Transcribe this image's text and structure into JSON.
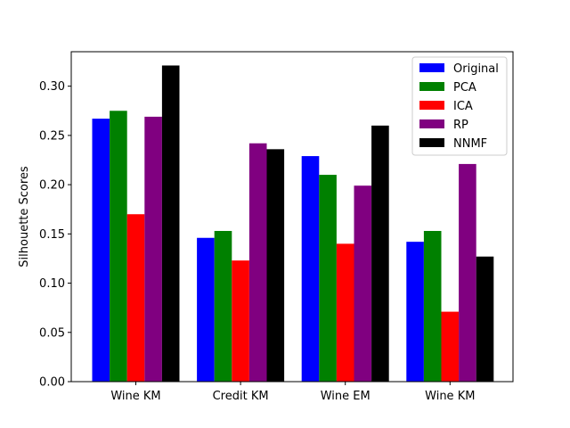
{
  "chart_data": {
    "type": "bar",
    "title": "",
    "xlabel": "",
    "ylabel": "Silhouette Scores",
    "ylim": [
      0,
      0.335
    ],
    "yticks": [
      "0.00",
      "0.05",
      "0.10",
      "0.15",
      "0.20",
      "0.25",
      "0.30"
    ],
    "categories": [
      "Wine KM",
      "Credit KM",
      "Wine EM",
      "Wine KM"
    ],
    "series": [
      {
        "name": "Original",
        "color": "#0000ff",
        "values": [
          0.267,
          0.146,
          0.229,
          0.142
        ]
      },
      {
        "name": "PCA",
        "color": "#008000",
        "values": [
          0.275,
          0.153,
          0.21,
          0.153
        ]
      },
      {
        "name": "ICA",
        "color": "#ff0000",
        "values": [
          0.17,
          0.123,
          0.14,
          0.071
        ]
      },
      {
        "name": "RP",
        "color": "#800080",
        "values": [
          0.269,
          0.242,
          0.199,
          0.221
        ]
      },
      {
        "name": "NNMF",
        "color": "#000000",
        "values": [
          0.321,
          0.236,
          0.26,
          0.127
        ]
      }
    ],
    "grid": false,
    "legend_position": "top-right"
  }
}
